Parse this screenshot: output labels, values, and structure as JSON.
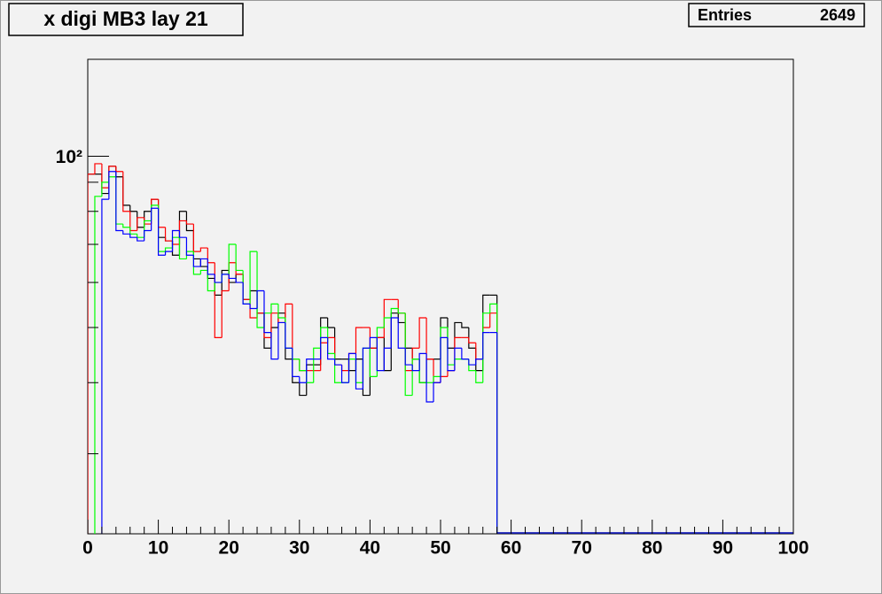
{
  "chart_data": {
    "type": "step-histogram",
    "title": "x digi MB3 lay 21",
    "stats": {
      "label": "Entries",
      "value": 2649
    },
    "bins": [
      0,
      1,
      2,
      3,
      4,
      5,
      6,
      7,
      8,
      9,
      10,
      11,
      12,
      13,
      14,
      15,
      16,
      17,
      18,
      19,
      20,
      21,
      22,
      23,
      24,
      25,
      26,
      27,
      28,
      29,
      30,
      31,
      32,
      33,
      34,
      35,
      36,
      37,
      38,
      39,
      40,
      41,
      42,
      43,
      44,
      45,
      46,
      47,
      48,
      49,
      50,
      51,
      52,
      53,
      54,
      55,
      56,
      57,
      58
    ],
    "xlim": [
      0,
      100
    ],
    "xticks": [
      0,
      10,
      20,
      30,
      40,
      50,
      60,
      70,
      80,
      90,
      100
    ],
    "ylim": [
      21.7,
      148
    ],
    "log_y": true,
    "yticks": [
      {
        "value": 100,
        "label": "10²"
      }
    ],
    "series": [
      {
        "color": "#000000",
        "values": [
          93,
          93,
          86,
          96,
          92,
          82,
          80,
          75,
          80,
          84,
          72,
          71,
          67,
          80,
          74,
          66,
          64,
          61,
          57,
          63,
          60,
          62,
          56,
          58,
          53,
          46,
          50,
          53,
          44,
          40,
          38,
          43,
          43,
          52,
          50,
          44,
          44,
          42,
          44,
          38,
          46,
          48,
          42,
          53,
          51,
          46,
          44,
          40,
          44,
          44,
          52,
          46,
          51,
          50,
          46,
          42,
          57,
          57
        ]
      },
      {
        "color": "#ff0000",
        "values": [
          93,
          97,
          88,
          96,
          94,
          80,
          74,
          78,
          76,
          84,
          75,
          71,
          70,
          77,
          76,
          68,
          69,
          65,
          48,
          58,
          65,
          62,
          56,
          52,
          53,
          48,
          53,
          51,
          55,
          44,
          42,
          42,
          42,
          47,
          48,
          43,
          42,
          45,
          50,
          50,
          46,
          48,
          56,
          56,
          53,
          42,
          46,
          52,
          44,
          40,
          41,
          42,
          48,
          48,
          47,
          44,
          50,
          53
        ]
      },
      {
        "color": "#00ff00",
        "values": [
          0,
          85,
          90,
          92,
          76,
          75,
          73,
          72,
          77,
          82,
          68,
          69,
          72,
          66,
          68,
          62,
          63,
          58,
          60,
          62,
          70,
          63,
          55,
          68,
          50,
          53,
          55,
          52,
          46,
          44,
          42,
          40,
          46,
          50,
          45,
          40,
          40,
          44,
          40,
          46,
          41,
          50,
          52,
          54,
          53,
          38,
          44,
          40,
          40,
          41,
          50,
          43,
          44,
          44,
          42,
          40,
          53,
          55
        ]
      },
      {
        "color": "#0000ff",
        "values": [
          0,
          0,
          84,
          94,
          74,
          73,
          72,
          71,
          74,
          81,
          67,
          68,
          74,
          72,
          67,
          64,
          66,
          62,
          60,
          62,
          61,
          60,
          55,
          54,
          58,
          49,
          44,
          51,
          46,
          41,
          40,
          44,
          44,
          48,
          44,
          43,
          40,
          45,
          39,
          46,
          48,
          42,
          46,
          52,
          46,
          43,
          42,
          45,
          37,
          40,
          48,
          42,
          46,
          44,
          43,
          44,
          49,
          49
        ]
      }
    ]
  }
}
